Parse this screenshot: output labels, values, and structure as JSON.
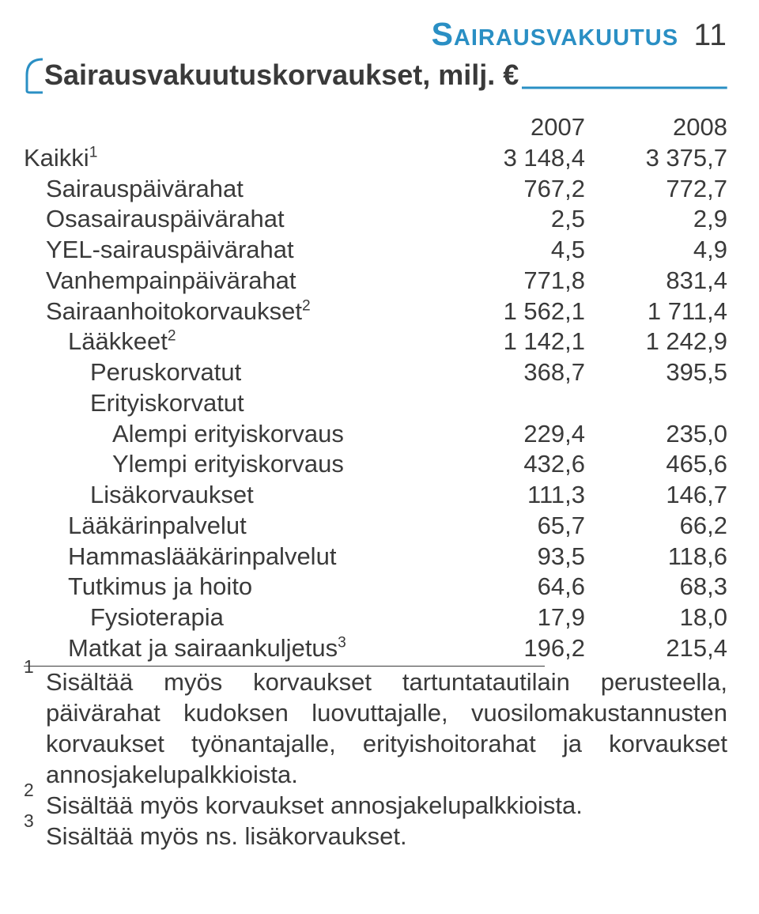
{
  "brand": {
    "text": "Sairausvakuutus",
    "color": "#2a8fc4",
    "fontsize": 41
  },
  "pagenum": {
    "text": "11",
    "color": "#3a3a3a",
    "fontsize": 39
  },
  "subtitle": {
    "text": "Sairausvakuutuskorvaukset, milj. €",
    "fontsize": 36,
    "bracket_color": "#2a8fc4",
    "underline_color": "#2a8fc4"
  },
  "table": {
    "fontsize": 31,
    "columns": [
      "2007",
      "2008"
    ],
    "rows": [
      {
        "label": "Kaikki",
        "sup": "1",
        "indent": 0,
        "v1": "3 148,4",
        "v2": "3 375,7"
      },
      {
        "label": "Sairauspäivärahat",
        "indent": 1,
        "v1": "767,2",
        "v2": "772,7"
      },
      {
        "label": "Osasairauspäivärahat",
        "indent": 1,
        "v1": "2,5",
        "v2": "2,9"
      },
      {
        "label": "YEL-sairauspäivärahat",
        "indent": 1,
        "v1": "4,5",
        "v2": "4,9"
      },
      {
        "label": "Vanhempainpäivärahat",
        "indent": 1,
        "v1": "771,8",
        "v2": "831,4"
      },
      {
        "label": "Sairaanhoitokorvaukset",
        "sup": "2",
        "indent": 1,
        "v1": "1 562,1",
        "v2": "1 711,4"
      },
      {
        "label": "Lääkkeet",
        "sup": "2",
        "indent": 2,
        "v1": "1 142,1",
        "v2": "1 242,9"
      },
      {
        "label": "Peruskorvatut",
        "indent": 3,
        "v1": "368,7",
        "v2": "395,5"
      },
      {
        "label": "Erityiskorvatut",
        "indent": 3,
        "v1": "",
        "v2": ""
      },
      {
        "label": "Alempi erityiskorvaus",
        "indent": 3,
        "extra_indent": true,
        "v1": "229,4",
        "v2": "235,0"
      },
      {
        "label": "Ylempi erityiskorvaus",
        "indent": 3,
        "extra_indent": true,
        "v1": "432,6",
        "v2": "465,6"
      },
      {
        "label": "Lisäkorvaukset",
        "indent": 3,
        "v1": "111,3",
        "v2": "146,7"
      },
      {
        "label": "Lääkärinpalvelut",
        "indent": 2,
        "v1": "65,7",
        "v2": "66,2"
      },
      {
        "label": "Hammaslääkärinpalvelut",
        "indent": 2,
        "v1": "93,5",
        "v2": "118,6"
      },
      {
        "label": "Tutkimus ja hoito",
        "indent": 2,
        "v1": "64,6",
        "v2": "68,3"
      },
      {
        "label": "Fysioterapia",
        "indent": 3,
        "v1": "17,9",
        "v2": "18,0"
      },
      {
        "label": "Matkat ja sairaankuljetus",
        "sup": "3",
        "indent": 2,
        "v1": "196,2",
        "v2": "215,4"
      }
    ]
  },
  "footnotes": {
    "fontsize": 31,
    "items": [
      {
        "num": "1",
        "text": "Sisältää myös korvaukset tartuntatautilain perusteella, päivärahat kudoksen luovuttajalle, vuosilomakustannusten korvaukset työnantajalle, erityishoitorahat ja korvaukset annosjakelupalkkioista."
      },
      {
        "num": "2",
        "text": "Sisältää myös korvaukset annosjakelupalkkioista."
      },
      {
        "num": "3",
        "text": "Sisältää myös ns. lisäkorvaukset."
      }
    ]
  }
}
